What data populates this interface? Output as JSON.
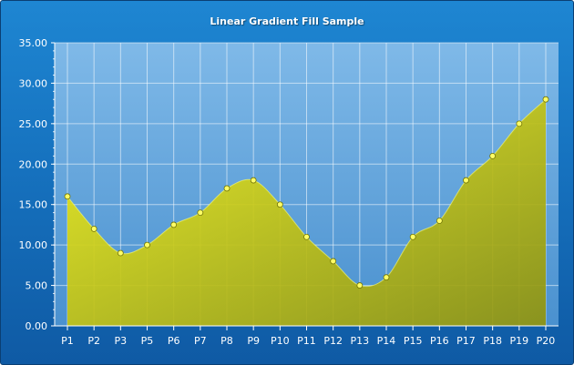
{
  "chart_data": {
    "type": "area",
    "title": "Linear Gradient Fill Sample",
    "categories": [
      "P1",
      "P2",
      "P3",
      "P5",
      "P6",
      "P7",
      "P8",
      "P9",
      "P10",
      "P11",
      "P12",
      "P13",
      "P14",
      "P15",
      "P16",
      "P17",
      "P18",
      "P19",
      "P20"
    ],
    "values": [
      16,
      12,
      9,
      10,
      12.5,
      14,
      17,
      18,
      15,
      11,
      8,
      5,
      6,
      11,
      13,
      18,
      21,
      25,
      28
    ],
    "ylim": [
      0,
      35
    ],
    "yticks": [
      "0.00",
      "5.00",
      "10.00",
      "15.00",
      "20.00",
      "25.00",
      "30.00",
      "35.00"
    ],
    "grid": true,
    "colors": {
      "fill_top": "#f4f21a",
      "fill_bottom": "#8f9310",
      "marker": "#ffff66",
      "plot_bg_top": "#7fb9e8",
      "plot_bg_bottom": "#4a91cf"
    }
  }
}
